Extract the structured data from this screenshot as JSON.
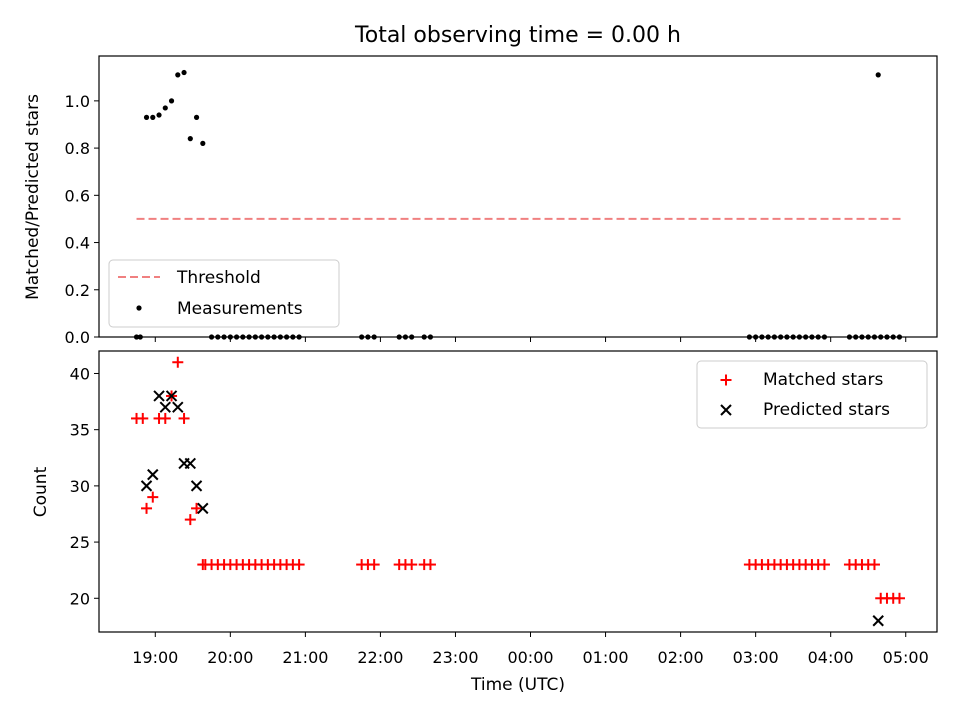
{
  "chart_data": [
    {
      "type": "scatter",
      "title": "Total observing time = 0.00 h",
      "xlabel": "",
      "ylabel": "Matched/Predicted stars",
      "xlim": [
        "18:15",
        "05:25"
      ],
      "ylim": [
        0,
        1.19
      ],
      "yticks": [
        "0.0",
        "0.2",
        "0.4",
        "0.6",
        "0.8",
        "1.0"
      ],
      "legend_position": "lower-left",
      "threshold": {
        "name": "Threshold",
        "value": 0.5,
        "x_start": "18:45",
        "x_end": "04:56",
        "color": "#f08080"
      },
      "measurements": {
        "name": "Measurements",
        "color": "#000000",
        "points": [
          [
            "18:45",
            0
          ],
          [
            "18:48",
            0
          ],
          [
            "18:53",
            0.93
          ],
          [
            "18:58",
            0.93
          ],
          [
            "19:03",
            0.94
          ],
          [
            "19:08",
            0.97
          ],
          [
            "19:13",
            1.0
          ],
          [
            "19:18",
            1.11
          ],
          [
            "19:23",
            1.12
          ],
          [
            "19:28",
            0.84
          ],
          [
            "19:33",
            0.93
          ],
          [
            "19:38",
            0.82
          ],
          [
            "19:45",
            0
          ],
          [
            "19:50",
            0
          ],
          [
            "19:55",
            0
          ],
          [
            "20:00",
            0
          ],
          [
            "20:05",
            0
          ],
          [
            "20:10",
            0
          ],
          [
            "20:15",
            0
          ],
          [
            "20:20",
            0
          ],
          [
            "20:25",
            0
          ],
          [
            "20:30",
            0
          ],
          [
            "20:35",
            0
          ],
          [
            "20:40",
            0
          ],
          [
            "20:45",
            0
          ],
          [
            "20:50",
            0
          ],
          [
            "20:55",
            0
          ],
          [
            "21:45",
            0
          ],
          [
            "21:50",
            0
          ],
          [
            "21:55",
            0
          ],
          [
            "22:15",
            0
          ],
          [
            "22:20",
            0
          ],
          [
            "22:25",
            0
          ],
          [
            "22:35",
            0
          ],
          [
            "22:40",
            0
          ],
          [
            "02:55",
            0
          ],
          [
            "03:00",
            0
          ],
          [
            "03:05",
            0
          ],
          [
            "03:10",
            0
          ],
          [
            "03:15",
            0
          ],
          [
            "03:20",
            0
          ],
          [
            "03:25",
            0
          ],
          [
            "03:30",
            0
          ],
          [
            "03:35",
            0
          ],
          [
            "03:40",
            0
          ],
          [
            "03:45",
            0
          ],
          [
            "03:50",
            0
          ],
          [
            "03:55",
            0
          ],
          [
            "04:15",
            0
          ],
          [
            "04:20",
            0
          ],
          [
            "04:25",
            0
          ],
          [
            "04:30",
            0
          ],
          [
            "04:35",
            0
          ],
          [
            "04:38",
            1.11
          ],
          [
            "04:40",
            0
          ],
          [
            "04:45",
            0
          ],
          [
            "04:50",
            0
          ],
          [
            "04:55",
            0
          ]
        ]
      }
    },
    {
      "type": "scatter",
      "title": "",
      "xlabel": "Time (UTC)",
      "ylabel": "Count",
      "xlim": [
        "18:15",
        "05:25"
      ],
      "ylim": [
        17,
        42
      ],
      "yticks": [
        "20",
        "25",
        "30",
        "35",
        "40"
      ],
      "xticks": [
        "19:00",
        "20:00",
        "21:00",
        "22:00",
        "23:00",
        "00:00",
        "01:00",
        "02:00",
        "03:00",
        "04:00",
        "05:00"
      ],
      "legend_position": "upper-right",
      "series": [
        {
          "name": "Matched stars",
          "marker": "plus",
          "color": "#ff0000",
          "points": [
            [
              "18:45",
              36
            ],
            [
              "18:50",
              36
            ],
            [
              "18:53",
              28
            ],
            [
              "18:58",
              29
            ],
            [
              "19:03",
              36
            ],
            [
              "19:08",
              36
            ],
            [
              "19:13",
              38
            ],
            [
              "19:18",
              41
            ],
            [
              "19:23",
              36
            ],
            [
              "19:28",
              27
            ],
            [
              "19:33",
              28
            ],
            [
              "19:38",
              23
            ],
            [
              "19:40",
              23
            ],
            [
              "19:45",
              23
            ],
            [
              "19:50",
              23
            ],
            [
              "19:55",
              23
            ],
            [
              "20:00",
              23
            ],
            [
              "20:05",
              23
            ],
            [
              "20:10",
              23
            ],
            [
              "20:15",
              23
            ],
            [
              "20:20",
              23
            ],
            [
              "20:25",
              23
            ],
            [
              "20:30",
              23
            ],
            [
              "20:35",
              23
            ],
            [
              "20:40",
              23
            ],
            [
              "20:45",
              23
            ],
            [
              "20:50",
              23
            ],
            [
              "20:55",
              23
            ],
            [
              "21:45",
              23
            ],
            [
              "21:50",
              23
            ],
            [
              "21:55",
              23
            ],
            [
              "22:15",
              23
            ],
            [
              "22:20",
              23
            ],
            [
              "22:25",
              23
            ],
            [
              "22:35",
              23
            ],
            [
              "22:40",
              23
            ],
            [
              "02:55",
              23
            ],
            [
              "03:00",
              23
            ],
            [
              "03:05",
              23
            ],
            [
              "03:10",
              23
            ],
            [
              "03:15",
              23
            ],
            [
              "03:20",
              23
            ],
            [
              "03:25",
              23
            ],
            [
              "03:30",
              23
            ],
            [
              "03:35",
              23
            ],
            [
              "03:40",
              23
            ],
            [
              "03:45",
              23
            ],
            [
              "03:50",
              23
            ],
            [
              "03:55",
              23
            ],
            [
              "04:15",
              23
            ],
            [
              "04:20",
              23
            ],
            [
              "04:25",
              23
            ],
            [
              "04:30",
              23
            ],
            [
              "04:35",
              23
            ],
            [
              "04:40",
              20
            ],
            [
              "04:45",
              20
            ],
            [
              "04:50",
              20
            ],
            [
              "04:55",
              20
            ]
          ]
        },
        {
          "name": "Predicted stars",
          "marker": "x",
          "color": "#000000",
          "points": [
            [
              "18:53",
              30
            ],
            [
              "18:58",
              31
            ],
            [
              "19:03",
              38
            ],
            [
              "19:08",
              37
            ],
            [
              "19:13",
              38
            ],
            [
              "19:18",
              37
            ],
            [
              "19:23",
              32
            ],
            [
              "19:28",
              32
            ],
            [
              "19:33",
              30
            ],
            [
              "19:38",
              28
            ],
            [
              "04:38",
              18
            ]
          ]
        }
      ]
    }
  ]
}
